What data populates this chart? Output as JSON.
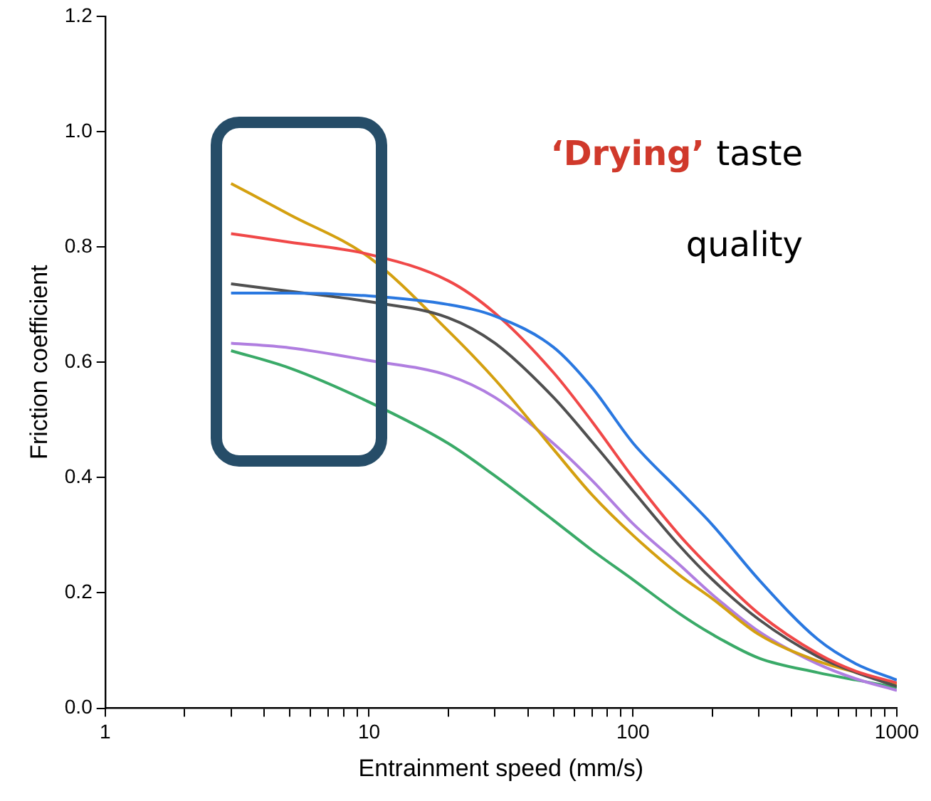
{
  "chart_data": {
    "type": "line",
    "xlabel": "Entrainment speed (mm/s)",
    "ylabel": "Friction coefficient",
    "annotations": [
      "‘Drying’",
      "taste quality"
    ],
    "x": [
      3,
      5,
      10,
      20,
      30,
      50,
      70,
      100,
      150,
      200,
      300,
      500,
      700,
      1000
    ],
    "series": [
      {
        "color": "#2a78e0",
        "values": [
          0.72,
          0.72,
          0.715,
          0.7,
          0.68,
          0.626,
          0.556,
          0.46,
          0.377,
          0.318,
          0.223,
          0.12,
          0.077,
          0.049
        ]
      },
      {
        "color": "#f04848",
        "values": [
          0.823,
          0.808,
          0.787,
          0.741,
          0.685,
          0.582,
          0.497,
          0.4,
          0.3,
          0.24,
          0.164,
          0.095,
          0.064,
          0.044
        ]
      },
      {
        "color": "#505050",
        "values": [
          0.736,
          0.723,
          0.705,
          0.677,
          0.633,
          0.539,
          0.462,
          0.377,
          0.282,
          0.223,
          0.154,
          0.09,
          0.062,
          0.038
        ]
      },
      {
        "color": "#d4a010",
        "values": [
          0.91,
          0.856,
          0.782,
          0.654,
          0.57,
          0.449,
          0.37,
          0.3,
          0.231,
          0.19,
          0.128,
          0.082,
          0.062,
          0.041
        ]
      },
      {
        "color": "#b07ee0",
        "values": [
          0.633,
          0.625,
          0.603,
          0.577,
          0.539,
          0.459,
          0.395,
          0.32,
          0.249,
          0.197,
          0.133,
          0.077,
          0.051,
          0.031
        ]
      },
      {
        "color": "#3aaa68",
        "values": [
          0.62,
          0.59,
          0.531,
          0.459,
          0.403,
          0.326,
          0.274,
          0.223,
          0.164,
          0.128,
          0.087,
          0.062,
          0.049,
          0.036
        ]
      }
    ],
    "log": "x",
    "xlim": [
      1,
      1000
    ],
    "xticks": [
      1,
      {
        "value": 2,
        "label": null
      },
      {
        "value": 3,
        "label": null
      },
      {
        "value": 4,
        "label": null
      },
      {
        "value": 5,
        "label": null
      },
      {
        "value": 6,
        "label": null
      },
      {
        "value": 7,
        "label": null
      },
      {
        "value": 8,
        "label": null
      },
      {
        "value": 9,
        "label": null
      },
      10,
      {
        "value": 20,
        "label": null
      },
      {
        "value": 30,
        "label": null
      },
      {
        "value": 40,
        "label": null
      },
      {
        "value": 50,
        "label": null
      },
      {
        "value": 60,
        "label": null
      },
      {
        "value": 70,
        "label": null
      },
      {
        "value": 80,
        "label": null
      },
      {
        "value": 90,
        "label": null
      },
      100,
      {
        "value": 200,
        "label": null
      },
      {
        "value": 300,
        "label": null
      },
      {
        "value": 400,
        "label": null
      },
      {
        "value": 500,
        "label": null
      },
      {
        "value": 600,
        "label": null
      },
      {
        "value": 700,
        "label": null
      },
      {
        "value": 800,
        "label": null
      },
      {
        "value": 900,
        "label": null
      },
      1000
    ],
    "ylim": [
      0,
      1.2
    ],
    "yticks": [
      {
        "value": 0,
        "label": "0.0"
      },
      {
        "value": 0.2,
        "label": "0.2"
      },
      {
        "value": 0.4,
        "label": "0.4"
      },
      {
        "value": 0.6,
        "label": "0.6"
      },
      {
        "value": 0.8,
        "label": "0.8"
      },
      {
        "value": 1.0,
        "label": "1.0"
      },
      {
        "value": 1.2,
        "label": "1.2"
      }
    ],
    "grid": false,
    "legend": false,
    "marker": "none",
    "line_style": "solid"
  }
}
